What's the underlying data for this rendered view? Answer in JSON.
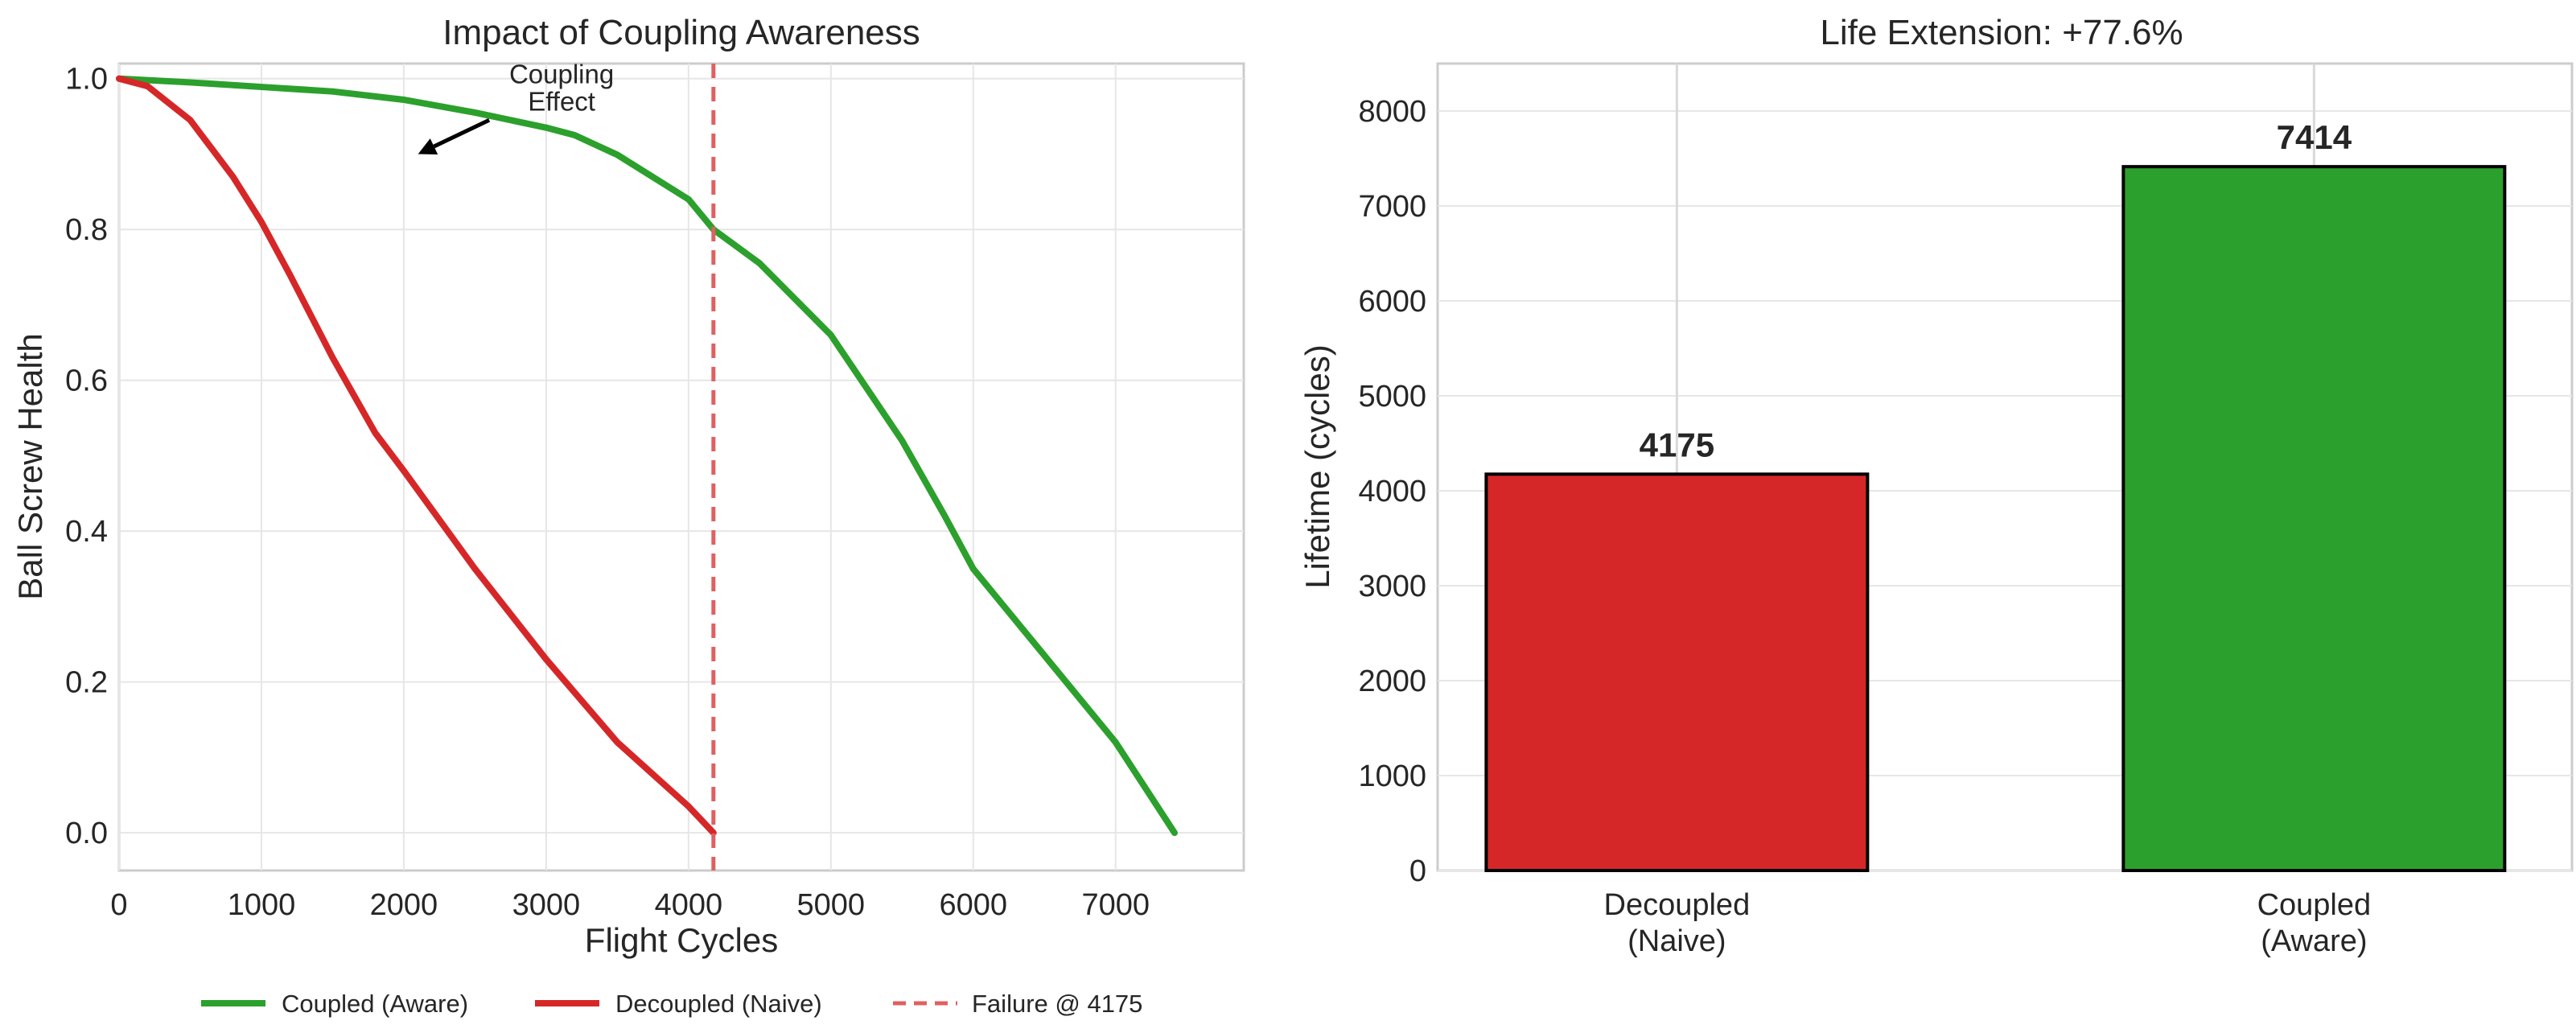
{
  "chart_data": [
    {
      "type": "line",
      "title": "Impact of Coupling Awareness",
      "xlabel": "Flight Cycles",
      "ylabel": "Ball Screw Health",
      "xlim": [
        0,
        7900
      ],
      "ylim": [
        -0.05,
        1.02
      ],
      "x_ticks": [
        0,
        1000,
        2000,
        3000,
        4000,
        5000,
        6000,
        7000
      ],
      "y_ticks": [
        0.0,
        0.2,
        0.4,
        0.6,
        0.8,
        1.0
      ],
      "grid": true,
      "legend_position": "below",
      "series": [
        {
          "name": "Coupled (Aware)",
          "color": "#2ca02c",
          "x": [
            0,
            500,
            1000,
            1500,
            2000,
            2500,
            3000,
            3200,
            3500,
            4000,
            4175,
            4500,
            5000,
            5500,
            5800,
            6000,
            6500,
            7000,
            7414
          ],
          "y": [
            1.0,
            0.995,
            0.989,
            0.983,
            0.972,
            0.955,
            0.935,
            0.925,
            0.899,
            0.84,
            0.8,
            0.755,
            0.66,
            0.52,
            0.42,
            0.35,
            0.235,
            0.12,
            0.0
          ]
        },
        {
          "name": "Decoupled (Naive)",
          "color": "#d62728",
          "x": [
            0,
            200,
            500,
            800,
            1000,
            1200,
            1500,
            1800,
            2000,
            2500,
            3000,
            3500,
            4000,
            4175
          ],
          "y": [
            1.0,
            0.99,
            0.945,
            0.87,
            0.81,
            0.74,
            0.63,
            0.53,
            0.48,
            0.35,
            0.23,
            0.12,
            0.035,
            0.0
          ]
        }
      ],
      "reference_line": {
        "name": "Failure @ 4175",
        "x": 4175,
        "color": "#e06060",
        "style": "dashed"
      },
      "annotation": {
        "line1": "Coupling",
        "line2": "Effect",
        "arrow_to": [
          2100,
          0.9
        ],
        "arrow_from": [
          2600,
          0.945
        ]
      }
    },
    {
      "type": "bar",
      "title": "Life Extension: +77.6%",
      "xlabel": "",
      "ylabel": "Lifetime (cycles)",
      "ylim": [
        0,
        8500
      ],
      "y_ticks": [
        0,
        1000,
        2000,
        3000,
        4000,
        5000,
        6000,
        7000,
        8000
      ],
      "grid": true,
      "categories": [
        {
          "line1": "Decoupled",
          "line2": "(Naive)"
        },
        {
          "line1": "Coupled",
          "line2": "(Aware)"
        }
      ],
      "values": [
        4175,
        7414
      ],
      "value_labels": [
        "4175",
        "7414"
      ],
      "colors": [
        "#d62728",
        "#2ca02c"
      ]
    }
  ]
}
